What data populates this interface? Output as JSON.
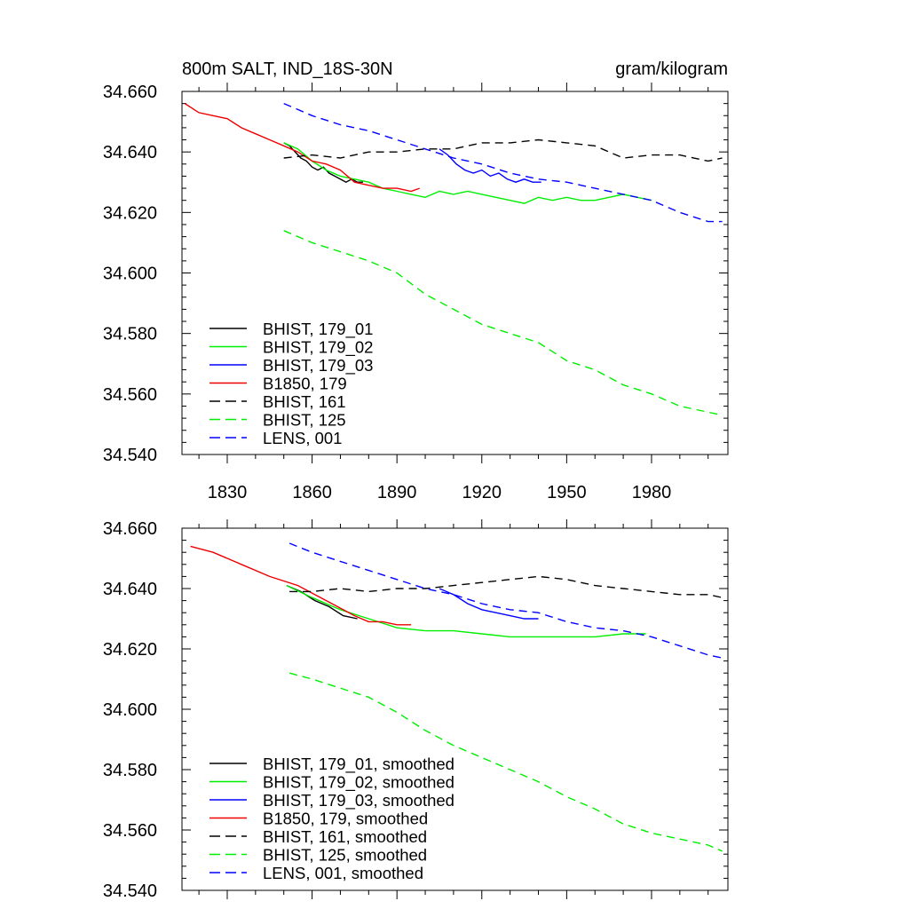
{
  "chart_data": [
    {
      "type": "line",
      "title": "800m SALT, IND_18S-30N",
      "units": "gram/kilogram",
      "xlabel": "",
      "ylabel": "",
      "xlim": [
        1814,
        2007
      ],
      "ylim": [
        34.54,
        34.66
      ],
      "xticks": [
        1830,
        1860,
        1890,
        1920,
        1950,
        1980
      ],
      "xtick_labels": [
        "1830",
        "1860",
        "1890",
        "1920",
        "1950",
        "1980"
      ],
      "yticks": [
        34.54,
        34.56,
        34.58,
        34.6,
        34.62,
        34.64,
        34.66
      ],
      "ytick_labels": [
        "34.540",
        "34.560",
        "34.580",
        "34.600",
        "34.620",
        "34.640",
        "34.660"
      ],
      "legend_position": "bottom-left",
      "series": [
        {
          "name": "BHIST, 179_01",
          "color": "#000000",
          "dash": "solid",
          "x": [
            1850,
            1852,
            1854,
            1856,
            1858,
            1860,
            1862,
            1864,
            1866,
            1868,
            1870,
            1872,
            1874,
            1876,
            1878
          ],
          "y": [
            34.643,
            34.642,
            34.64,
            34.638,
            34.637,
            34.635,
            34.634,
            34.635,
            34.633,
            34.632,
            34.631,
            34.63,
            34.631,
            34.63,
            34.63
          ]
        },
        {
          "name": "BHIST, 179_02",
          "color": "#00ee00",
          "dash": "solid",
          "x": [
            1850,
            1855,
            1860,
            1865,
            1870,
            1875,
            1880,
            1885,
            1890,
            1895,
            1900,
            1905,
            1910,
            1915,
            1920,
            1925,
            1930,
            1935,
            1940,
            1945,
            1950,
            1955,
            1960,
            1965,
            1970,
            1975,
            1980
          ],
          "y": [
            34.643,
            34.641,
            34.637,
            34.634,
            34.632,
            34.631,
            34.63,
            34.628,
            34.627,
            34.626,
            34.625,
            34.627,
            34.626,
            34.627,
            34.626,
            34.625,
            34.624,
            34.623,
            34.625,
            34.624,
            34.625,
            34.624,
            34.624,
            34.625,
            34.626,
            34.625,
            34.624
          ]
        },
        {
          "name": "BHIST, 179_03",
          "color": "#0000ff",
          "dash": "solid",
          "x": [
            1905,
            1908,
            1911,
            1914,
            1917,
            1920,
            1923,
            1926,
            1929,
            1932,
            1935,
            1938,
            1941
          ],
          "y": [
            34.641,
            34.639,
            34.636,
            34.634,
            34.633,
            34.634,
            34.632,
            34.633,
            34.631,
            34.63,
            34.631,
            34.63,
            34.63
          ]
        },
        {
          "name": "B1850, 179",
          "color": "#ee0000",
          "dash": "solid",
          "x": [
            1815,
            1820,
            1825,
            1830,
            1835,
            1840,
            1845,
            1850,
            1855,
            1860,
            1865,
            1870,
            1875,
            1880,
            1885,
            1890,
            1895,
            1898
          ],
          "y": [
            34.656,
            34.653,
            34.652,
            34.651,
            34.648,
            34.646,
            34.644,
            34.642,
            34.64,
            34.637,
            34.636,
            34.634,
            34.63,
            34.629,
            34.628,
            34.628,
            34.627,
            34.628
          ]
        },
        {
          "name": "BHIST, 161",
          "color": "#000000",
          "dash": "dashed",
          "x": [
            1850,
            1860,
            1870,
            1880,
            1890,
            1900,
            1910,
            1920,
            1930,
            1940,
            1950,
            1960,
            1970,
            1980,
            1990,
            2000,
            2005
          ],
          "y": [
            34.638,
            34.639,
            34.638,
            34.64,
            34.64,
            34.641,
            34.641,
            34.643,
            34.643,
            34.644,
            34.643,
            34.642,
            34.638,
            34.639,
            34.639,
            34.637,
            34.638
          ]
        },
        {
          "name": "BHIST, 125",
          "color": "#00ee00",
          "dash": "dashed",
          "x": [
            1850,
            1860,
            1870,
            1880,
            1890,
            1900,
            1910,
            1920,
            1930,
            1940,
            1950,
            1960,
            1970,
            1980,
            1990,
            2000,
            2005
          ],
          "y": [
            34.614,
            34.61,
            34.607,
            34.604,
            34.6,
            34.593,
            34.588,
            34.583,
            34.58,
            34.577,
            34.571,
            34.568,
            34.563,
            34.56,
            34.556,
            34.554,
            34.553
          ]
        },
        {
          "name": "LENS, 001",
          "color": "#0000ff",
          "dash": "dashed",
          "x": [
            1850,
            1860,
            1870,
            1880,
            1890,
            1900,
            1910,
            1920,
            1930,
            1940,
            1950,
            1960,
            1970,
            1980,
            1990,
            2000,
            2005
          ],
          "y": [
            34.656,
            34.652,
            34.649,
            34.647,
            34.644,
            34.641,
            34.638,
            34.636,
            34.633,
            34.631,
            34.63,
            34.628,
            34.626,
            34.624,
            34.62,
            34.617,
            34.617
          ]
        }
      ]
    },
    {
      "type": "line",
      "title": "",
      "xlabel": "",
      "ylabel": "",
      "xlim": [
        1814,
        2007
      ],
      "ylim": [
        34.54,
        34.66
      ],
      "xticks": [
        1830,
        1860,
        1890,
        1920,
        1950,
        1980
      ],
      "xtick_labels": [],
      "yticks": [
        34.54,
        34.56,
        34.58,
        34.6,
        34.62,
        34.64,
        34.66
      ],
      "ytick_labels": [
        "34.540",
        "34.560",
        "34.580",
        "34.600",
        "34.620",
        "34.640",
        "34.660"
      ],
      "legend_position": "bottom-left",
      "series": [
        {
          "name": "BHIST, 179_01, smoothed",
          "color": "#000000",
          "dash": "solid",
          "x": [
            1851,
            1856,
            1861,
            1866,
            1871,
            1876
          ],
          "y": [
            34.641,
            34.639,
            34.636,
            34.634,
            34.631,
            34.63
          ]
        },
        {
          "name": "BHIST, 179_02, smoothed",
          "color": "#00ee00",
          "dash": "solid",
          "x": [
            1851,
            1860,
            1870,
            1880,
            1890,
            1900,
            1910,
            1920,
            1930,
            1940,
            1950,
            1960,
            1970,
            1978
          ],
          "y": [
            34.641,
            34.637,
            34.633,
            34.63,
            34.627,
            34.626,
            34.626,
            34.625,
            34.624,
            34.624,
            34.624,
            34.624,
            34.625,
            34.625
          ]
        },
        {
          "name": "BHIST, 179_03, smoothed",
          "color": "#0000ff",
          "dash": "solid",
          "x": [
            1905,
            1910,
            1915,
            1920,
            1925,
            1930,
            1935,
            1940
          ],
          "y": [
            34.64,
            34.638,
            34.635,
            34.633,
            34.632,
            34.631,
            34.63,
            34.63
          ]
        },
        {
          "name": "B1850, 179, smoothed",
          "color": "#ee0000",
          "dash": "solid",
          "x": [
            1817,
            1825,
            1835,
            1845,
            1855,
            1865,
            1875,
            1880,
            1885,
            1890,
            1895
          ],
          "y": [
            34.654,
            34.652,
            34.648,
            34.644,
            34.641,
            34.636,
            34.631,
            34.629,
            34.629,
            34.628,
            34.628
          ]
        },
        {
          "name": "BHIST, 161, smoothed",
          "color": "#000000",
          "dash": "dashed",
          "x": [
            1852,
            1860,
            1870,
            1880,
            1890,
            1900,
            1910,
            1920,
            1930,
            1940,
            1950,
            1960,
            1970,
            1980,
            1990,
            2000,
            2005
          ],
          "y": [
            34.639,
            34.639,
            34.64,
            34.639,
            34.64,
            34.64,
            34.641,
            34.642,
            34.643,
            34.644,
            34.643,
            34.641,
            34.64,
            34.639,
            34.638,
            34.638,
            34.637
          ]
        },
        {
          "name": "BHIST, 125, smoothed",
          "color": "#00ee00",
          "dash": "dashed",
          "x": [
            1852,
            1860,
            1870,
            1880,
            1890,
            1900,
            1910,
            1920,
            1930,
            1940,
            1950,
            1960,
            1970,
            1980,
            1990,
            2000,
            2005
          ],
          "y": [
            34.612,
            34.61,
            34.607,
            34.604,
            34.599,
            34.593,
            34.588,
            34.584,
            34.58,
            34.576,
            34.571,
            34.567,
            34.562,
            34.559,
            34.557,
            34.555,
            34.553
          ]
        },
        {
          "name": "LENS, 001, smoothed",
          "color": "#0000ff",
          "dash": "dashed",
          "x": [
            1852,
            1860,
            1870,
            1880,
            1890,
            1900,
            1910,
            1920,
            1930,
            1940,
            1950,
            1960,
            1970,
            1980,
            1990,
            2000,
            2005
          ],
          "y": [
            34.655,
            34.652,
            34.649,
            34.646,
            34.643,
            34.64,
            34.638,
            34.635,
            34.633,
            34.632,
            34.629,
            34.627,
            34.626,
            34.624,
            34.621,
            34.618,
            34.617
          ]
        }
      ]
    }
  ]
}
